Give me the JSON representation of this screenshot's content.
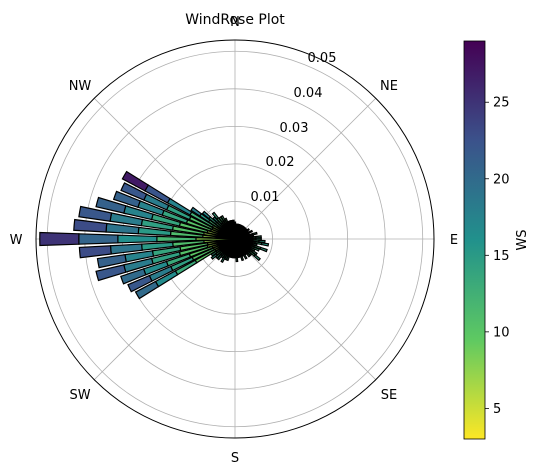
{
  "chart_data": {
    "type": "windrose",
    "title": "WindRose Plot",
    "directions": [
      "N",
      "NE",
      "E",
      "SE",
      "S",
      "SW",
      "W",
      "NW"
    ],
    "radial_ticks": [
      "0.01",
      "0.02",
      "0.03",
      "0.04",
      "0.05"
    ],
    "radial_max": 0.053,
    "colorbar": {
      "label": "WS",
      "ticks": [
        "5",
        "10",
        "15",
        "20",
        "25"
      ],
      "min": 3,
      "max": 29,
      "colormap": "viridis_reversed"
    },
    "bins": [
      {
        "direction_deg": 90,
        "freq": 0.007,
        "ws_max": 14
      },
      {
        "direction_deg": 95,
        "freq": 0.008,
        "ws_max": 15
      },
      {
        "direction_deg": 100,
        "freq": 0.009,
        "ws_max": 15
      },
      {
        "direction_deg": 105,
        "freq": 0.006,
        "ws_max": 13
      },
      {
        "direction_deg": 110,
        "freq": 0.009,
        "ws_max": 14
      },
      {
        "direction_deg": 115,
        "freq": 0.007,
        "ws_max": 13
      },
      {
        "direction_deg": 120,
        "freq": 0.006,
        "ws_max": 12
      },
      {
        "direction_deg": 125,
        "freq": 0.007,
        "ws_max": 13
      },
      {
        "direction_deg": 130,
        "freq": 0.0085,
        "ws_max": 14
      },
      {
        "direction_deg": 135,
        "freq": 0.006,
        "ws_max": 13
      },
      {
        "direction_deg": 140,
        "freq": 0.006,
        "ws_max": 12
      },
      {
        "direction_deg": 145,
        "freq": 0.005,
        "ws_max": 12
      },
      {
        "direction_deg": 150,
        "freq": 0.006,
        "ws_max": 13
      },
      {
        "direction_deg": 155,
        "freq": 0.005,
        "ws_max": 12
      },
      {
        "direction_deg": 160,
        "freq": 0.006,
        "ws_max": 12
      },
      {
        "direction_deg": 165,
        "freq": 0.005,
        "ws_max": 12
      },
      {
        "direction_deg": 170,
        "freq": 0.005,
        "ws_max": 12
      },
      {
        "direction_deg": 175,
        "freq": 0.006,
        "ws_max": 12
      },
      {
        "direction_deg": 180,
        "freq": 0.005,
        "ws_max": 12
      },
      {
        "direction_deg": 185,
        "freq": 0.005,
        "ws_max": 12
      },
      {
        "direction_deg": 190,
        "freq": 0.005,
        "ws_max": 12
      },
      {
        "direction_deg": 195,
        "freq": 0.005,
        "ws_max": 12
      },
      {
        "direction_deg": 200,
        "freq": 0.006,
        "ws_max": 12
      },
      {
        "direction_deg": 205,
        "freq": 0.006,
        "ws_max": 13
      },
      {
        "direction_deg": 210,
        "freq": 0.007,
        "ws_max": 14
      },
      {
        "direction_deg": 215,
        "freq": 0.006,
        "ws_max": 13
      },
      {
        "direction_deg": 220,
        "freq": 0.007,
        "ws_max": 14
      },
      {
        "direction_deg": 225,
        "freq": 0.007,
        "ws_max": 14
      },
      {
        "direction_deg": 230,
        "freq": 0.008,
        "ws_max": 15
      },
      {
        "direction_deg": 235,
        "freq": 0.0075,
        "ws_max": 14
      },
      {
        "direction_deg": 240,
        "freq": 0.03,
        "ws_max": 20
      },
      {
        "direction_deg": 245,
        "freq": 0.031,
        "ws_max": 22
      },
      {
        "direction_deg": 250,
        "freq": 0.032,
        "ws_max": 20
      },
      {
        "direction_deg": 255,
        "freq": 0.038,
        "ws_max": 22
      },
      {
        "direction_deg": 260,
        "freq": 0.037,
        "ws_max": 21
      },
      {
        "direction_deg": 265,
        "freq": 0.0415,
        "ws_max": 23
      },
      {
        "direction_deg": 270,
        "freq": 0.052,
        "ws_max": 25
      },
      {
        "direction_deg": 275,
        "freq": 0.043,
        "ws_max": 23
      },
      {
        "direction_deg": 280,
        "freq": 0.042,
        "ws_max": 22
      },
      {
        "direction_deg": 285,
        "freq": 0.038,
        "ws_max": 21
      },
      {
        "direction_deg": 290,
        "freq": 0.034,
        "ws_max": 21
      },
      {
        "direction_deg": 295,
        "freq": 0.033,
        "ws_max": 22
      },
      {
        "direction_deg": 300,
        "freq": 0.034,
        "ws_max": 27
      },
      {
        "direction_deg": 305,
        "freq": 0.014,
        "ws_max": 18
      },
      {
        "direction_deg": 310,
        "freq": 0.011,
        "ws_max": 17
      },
      {
        "direction_deg": 315,
        "freq": 0.008,
        "ws_max": 15
      },
      {
        "direction_deg": 320,
        "freq": 0.009,
        "ws_max": 14
      },
      {
        "direction_deg": 325,
        "freq": 0.007,
        "ws_max": 12
      },
      {
        "direction_deg": 330,
        "freq": 0.007,
        "ws_max": 12
      },
      {
        "direction_deg": 335,
        "freq": 0.006,
        "ws_max": 11
      },
      {
        "direction_deg": 340,
        "freq": 0.005,
        "ws_max": 11
      },
      {
        "direction_deg": 345,
        "freq": 0.005,
        "ws_max": 11
      },
      {
        "direction_deg": 350,
        "freq": 0.005,
        "ws_max": 10
      },
      {
        "direction_deg": 355,
        "freq": 0.005,
        "ws_max": 10
      },
      {
        "direction_deg": 0,
        "freq": 0.0045,
        "ws_max": 10
      },
      {
        "direction_deg": 5,
        "freq": 0.004,
        "ws_max": 10
      },
      {
        "direction_deg": 10,
        "freq": 0.004,
        "ws_max": 10
      },
      {
        "direction_deg": 15,
        "freq": 0.004,
        "ws_max": 10
      },
      {
        "direction_deg": 20,
        "freq": 0.004,
        "ws_max": 10
      },
      {
        "direction_deg": 25,
        "freq": 0.004,
        "ws_max": 10
      },
      {
        "direction_deg": 30,
        "freq": 0.004,
        "ws_max": 10
      },
      {
        "direction_deg": 35,
        "freq": 0.004,
        "ws_max": 10
      },
      {
        "direction_deg": 40,
        "freq": 0.004,
        "ws_max": 10
      },
      {
        "direction_deg": 45,
        "freq": 0.004,
        "ws_max": 11
      },
      {
        "direction_deg": 50,
        "freq": 0.004,
        "ws_max": 11
      },
      {
        "direction_deg": 55,
        "freq": 0.0045,
        "ws_max": 11
      },
      {
        "direction_deg": 60,
        "freq": 0.004,
        "ws_max": 11
      },
      {
        "direction_deg": 65,
        "freq": 0.005,
        "ws_max": 12
      },
      {
        "direction_deg": 70,
        "freq": 0.004,
        "ws_max": 11
      },
      {
        "direction_deg": 75,
        "freq": 0.006,
        "ws_max": 12
      },
      {
        "direction_deg": 80,
        "freq": 0.005,
        "ws_max": 12
      },
      {
        "direction_deg": 85,
        "freq": 0.007,
        "ws_max": 13
      }
    ]
  }
}
